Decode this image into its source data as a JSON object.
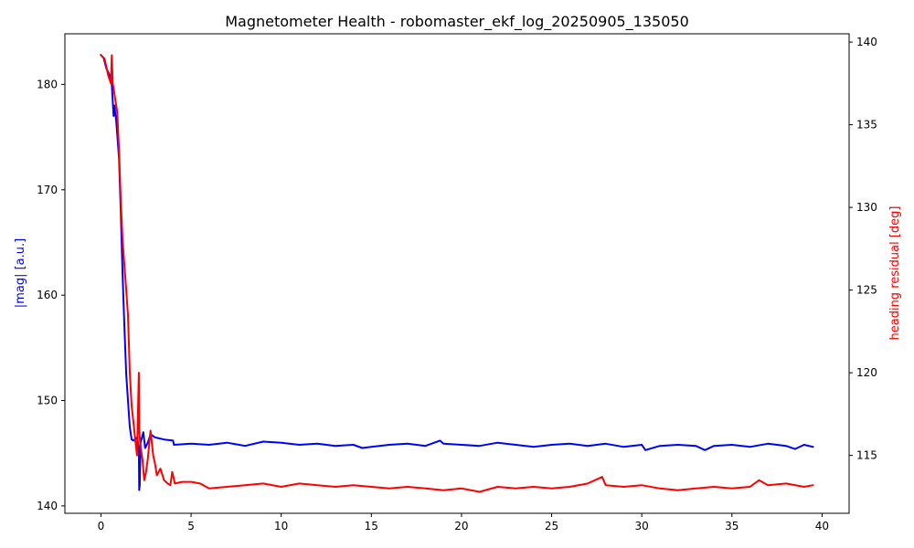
{
  "chart_data": {
    "type": "line",
    "title": "Magnetometer Health - robomaster_ekf_log_20250905_135050",
    "xlabel": "",
    "ylabel": "|mag| [a.u.]",
    "ylabel_right": "heading residual [deg]",
    "xlim": [
      -2,
      41.5
    ],
    "ylim": [
      139.3,
      184.8
    ],
    "ylim_right": [
      111.5,
      140.5
    ],
    "xticks": [
      0,
      5,
      10,
      15,
      20,
      25,
      30,
      35,
      40
    ],
    "yticks": [
      140,
      150,
      160,
      170,
      180
    ],
    "yticks_right": [
      115,
      120,
      125,
      130,
      135,
      140
    ],
    "grid": false,
    "legend": "none",
    "series": [
      {
        "axis": "left",
        "color": "#0000ff",
        "x": [
          0.0,
          0.15,
          0.3,
          0.45,
          0.6,
          0.7,
          0.75,
          0.85,
          1.0,
          1.1,
          1.2,
          1.3,
          1.4,
          1.5,
          1.6,
          1.7,
          1.8,
          2.0,
          2.1,
          2.12,
          2.15,
          2.2,
          2.35,
          2.45,
          2.6,
          2.75,
          3.0,
          3.5,
          4.0,
          4.05,
          5,
          6,
          7,
          8,
          9,
          10,
          11,
          12,
          13,
          14,
          14.5,
          15,
          16,
          17,
          18,
          18.8,
          19,
          20,
          21,
          22,
          23,
          24,
          25,
          26,
          27,
          28,
          29,
          30,
          30.2,
          31,
          32,
          33,
          33.5,
          34,
          35,
          36,
          37,
          38,
          38.5,
          39,
          39.5
        ],
        "y": [
          182.8,
          182.5,
          181.5,
          181.0,
          180.0,
          177.0,
          178.0,
          176.5,
          173.0,
          168.0,
          162.0,
          157.0,
          152.5,
          150.0,
          147.5,
          146.3,
          146.2,
          146.5,
          145.5,
          141.5,
          142.0,
          146.0,
          147.0,
          145.5,
          146.0,
          146.8,
          146.5,
          146.3,
          146.2,
          145.8,
          145.9,
          145.8,
          146.0,
          145.7,
          146.1,
          146.0,
          145.8,
          145.9,
          145.7,
          145.8,
          145.5,
          145.6,
          145.8,
          145.9,
          145.7,
          146.2,
          145.9,
          145.8,
          145.7,
          146.0,
          145.8,
          145.6,
          145.8,
          145.9,
          145.7,
          145.9,
          145.6,
          145.8,
          145.3,
          145.7,
          145.8,
          145.7,
          145.3,
          145.7,
          145.8,
          145.6,
          145.9,
          145.7,
          145.4,
          145.8,
          145.6
        ]
      },
      {
        "axis": "right",
        "color": "#ff0000",
        "x": [
          0.0,
          0.2,
          0.3,
          0.4,
          0.55,
          0.6,
          0.65,
          0.7,
          0.8,
          0.9,
          1.0,
          1.1,
          1.2,
          1.3,
          1.4,
          1.5,
          1.6,
          1.7,
          1.8,
          1.9,
          2.0,
          2.05,
          2.1,
          2.12,
          2.2,
          2.3,
          2.4,
          2.5,
          2.6,
          2.75,
          2.9,
          3.0,
          3.1,
          3.3,
          3.5,
          3.7,
          3.85,
          3.95,
          4.0,
          4.1,
          4.5,
          5,
          5.5,
          6,
          7,
          8,
          9,
          10,
          11,
          12,
          13,
          14,
          15,
          16,
          17,
          18,
          19,
          20,
          21,
          22,
          23,
          24,
          25,
          26,
          27,
          27.8,
          28,
          29,
          30,
          31,
          32,
          33,
          34,
          35,
          36,
          36.5,
          37,
          38,
          39,
          39.5
        ],
        "y": [
          139.2,
          139.0,
          138.5,
          138.0,
          137.5,
          139.2,
          137.5,
          137.2,
          136.5,
          135.8,
          133.5,
          130.5,
          128.0,
          126.5,
          125.0,
          123.5,
          120.0,
          118.0,
          117.0,
          116.0,
          115.0,
          117.5,
          120.0,
          116.5,
          115.5,
          114.8,
          113.5,
          114.0,
          114.8,
          116.5,
          115.0,
          114.5,
          113.8,
          114.2,
          113.5,
          113.3,
          113.2,
          114.0,
          113.8,
          113.3,
          113.4,
          113.4,
          113.3,
          113.0,
          113.1,
          113.2,
          113.3,
          113.1,
          113.3,
          113.2,
          113.1,
          113.2,
          113.1,
          113.0,
          113.1,
          113.0,
          112.9,
          113.0,
          112.8,
          113.1,
          113.0,
          113.1,
          113.0,
          113.1,
          113.3,
          113.7,
          113.2,
          113.1,
          113.2,
          113.0,
          112.9,
          113.0,
          113.1,
          113.0,
          113.1,
          113.5,
          113.2,
          113.3,
          113.1,
          113.2
        ]
      }
    ]
  }
}
